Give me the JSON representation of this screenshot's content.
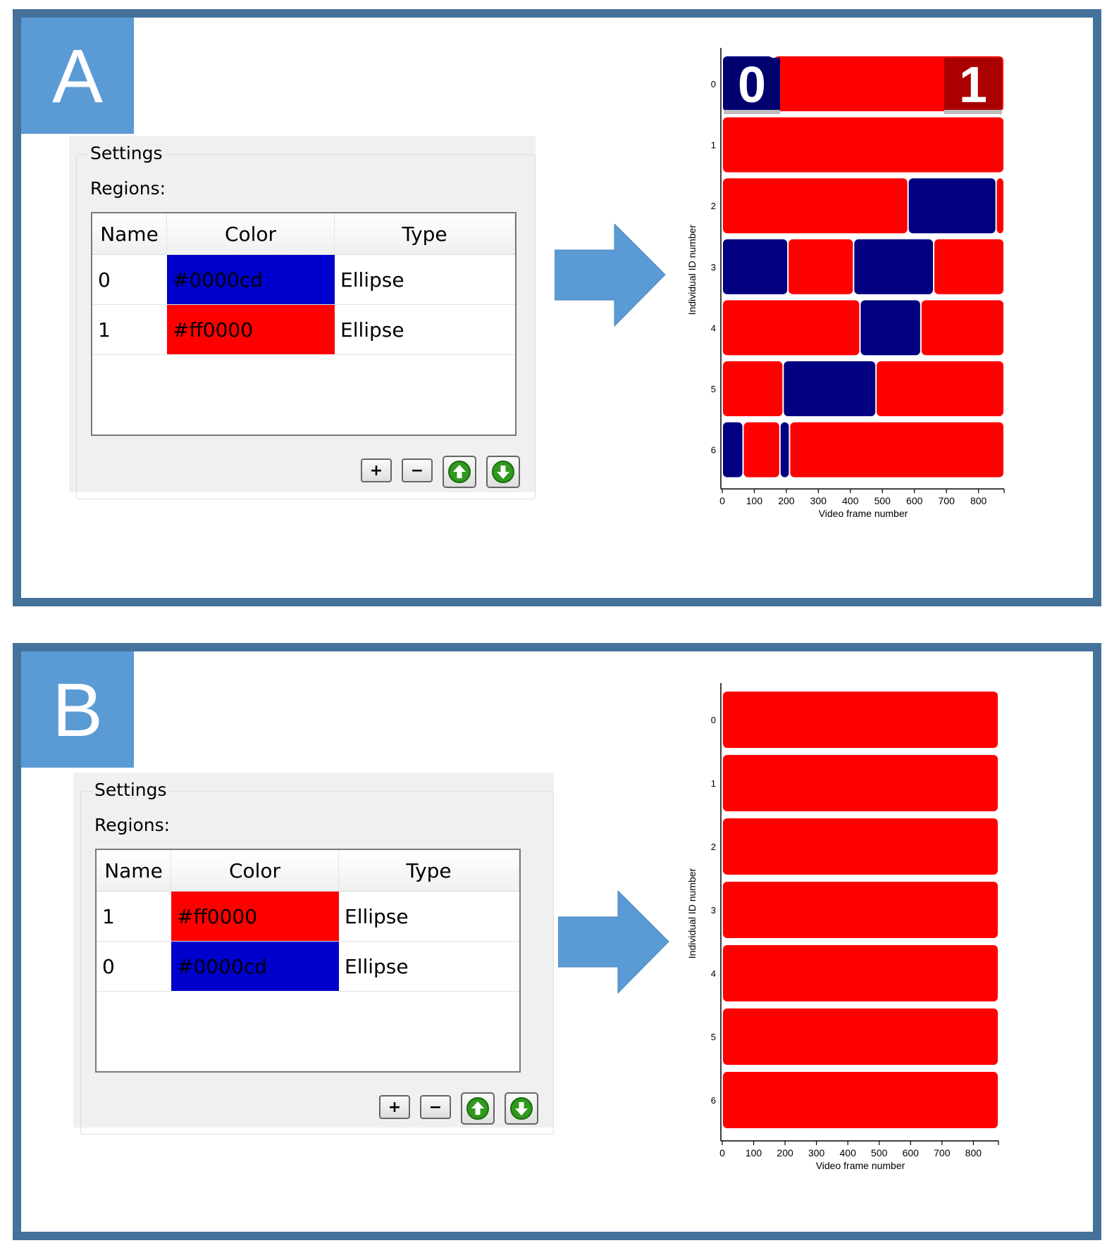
{
  "panels": [
    {
      "letter": "A",
      "settings": {
        "group_title": "Settings",
        "regions_label": "Regions:",
        "columns": [
          "Name",
          "Color",
          "Type"
        ],
        "rows": [
          {
            "name": "0",
            "color": "#0000cd",
            "type": "Ellipse"
          },
          {
            "name": "1",
            "color": "#ff0000",
            "type": "Ellipse"
          }
        ],
        "buttons": {
          "add": "+",
          "remove": "−",
          "move_up_icon": "arrow-up-icon",
          "move_down_icon": "arrow-down-icon"
        }
      },
      "legend": [
        {
          "label": "0",
          "color": "#00006e"
        },
        {
          "label": "1",
          "color": "#aa0000"
        }
      ]
    },
    {
      "letter": "B",
      "settings": {
        "group_title": "Settings",
        "regions_label": "Regions:",
        "columns": [
          "Name",
          "Color",
          "Type"
        ],
        "rows": [
          {
            "name": "1",
            "color": "#ff0000",
            "type": "Ellipse"
          },
          {
            "name": "0",
            "color": "#0000cd",
            "type": "Ellipse"
          }
        ],
        "buttons": {
          "add": "+",
          "remove": "−",
          "move_up_icon": "arrow-up-icon",
          "move_down_icon": "arrow-down-icon"
        }
      },
      "legend": []
    }
  ],
  "colors": {
    "region0": "#000080",
    "region1": "#ff0000",
    "frame": "#44729b",
    "letter_bg": "#5b9bd5",
    "arrow": "#5b9bd5"
  },
  "chart_data": [
    {
      "type": "bar",
      "orientation": "horizontal-timeline",
      "xlabel": "Video frame number",
      "ylabel": "Individual ID number",
      "xticks": [
        0,
        100,
        200,
        300,
        400,
        500,
        600,
        700,
        800
      ],
      "xlim": [
        0,
        880
      ],
      "categories": [
        "0",
        "1",
        "2",
        "3",
        "4",
        "5",
        "6"
      ],
      "series": [
        {
          "id": "0",
          "segments": [
            [
              0,
              160,
              "0"
            ],
            [
              160,
              880,
              "1"
            ]
          ]
        },
        {
          "id": "1",
          "segments": [
            [
              0,
              880,
              "1"
            ]
          ]
        },
        {
          "id": "2",
          "segments": [
            [
              0,
              580,
              "1"
            ],
            [
              580,
              855,
              "0"
            ],
            [
              855,
              880,
              "1"
            ]
          ]
        },
        {
          "id": "3",
          "segments": [
            [
              0,
              205,
              "0"
            ],
            [
              205,
              410,
              "1"
            ],
            [
              410,
              660,
              "0"
            ],
            [
              660,
              880,
              "1"
            ]
          ]
        },
        {
          "id": "4",
          "segments": [
            [
              0,
              430,
              "1"
            ],
            [
              430,
              620,
              "0"
            ],
            [
              620,
              880,
              "1"
            ]
          ]
        },
        {
          "id": "5",
          "segments": [
            [
              0,
              190,
              "1"
            ],
            [
              190,
              480,
              "0"
            ],
            [
              480,
              880,
              "1"
            ]
          ]
        },
        {
          "id": "6",
          "segments": [
            [
              0,
              65,
              "0"
            ],
            [
              65,
              180,
              "1"
            ],
            [
              180,
              210,
              "0"
            ],
            [
              210,
              880,
              "1"
            ]
          ]
        }
      ]
    },
    {
      "type": "bar",
      "orientation": "horizontal-timeline",
      "xlabel": "Video frame number",
      "ylabel": "Individual ID number",
      "xticks": [
        0,
        100,
        200,
        300,
        400,
        500,
        600,
        700,
        800
      ],
      "xlim": [
        0,
        880
      ],
      "categories": [
        "0",
        "1",
        "2",
        "3",
        "4",
        "5",
        "6"
      ],
      "series": [
        {
          "id": "0",
          "segments": [
            [
              0,
              880,
              "1"
            ]
          ]
        },
        {
          "id": "1",
          "segments": [
            [
              0,
              880,
              "1"
            ]
          ]
        },
        {
          "id": "2",
          "segments": [
            [
              0,
              880,
              "1"
            ]
          ]
        },
        {
          "id": "3",
          "segments": [
            [
              0,
              880,
              "1"
            ]
          ]
        },
        {
          "id": "4",
          "segments": [
            [
              0,
              880,
              "1"
            ]
          ]
        },
        {
          "id": "5",
          "segments": [
            [
              0,
              880,
              "1"
            ]
          ]
        },
        {
          "id": "6",
          "segments": [
            [
              0,
              880,
              "1"
            ]
          ]
        }
      ]
    }
  ]
}
